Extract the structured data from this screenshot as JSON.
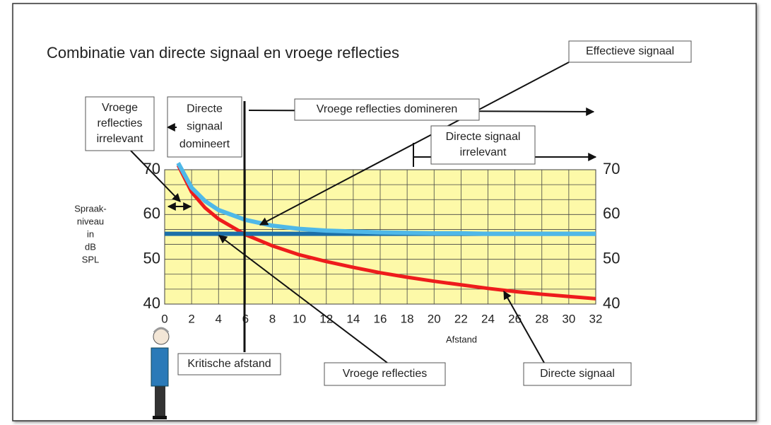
{
  "chart_data": {
    "type": "line",
    "title": "Combinatie van directe signaal en vroege reflecties",
    "ylabel": [
      "Spraak-",
      "niveau",
      "in",
      "dB",
      "SPL"
    ],
    "xlabel": "Afstand",
    "xlim": [
      0,
      32
    ],
    "xticks": [
      0,
      2,
      4,
      6,
      8,
      10,
      12,
      14,
      16,
      18,
      20,
      22,
      24,
      26,
      28,
      30,
      32
    ],
    "ylim": [
      40,
      70
    ],
    "yticks": [
      40,
      50,
      60,
      70
    ],
    "grid": true,
    "plot_background": "#fdf9a8",
    "series": [
      {
        "name": "Directe signaal",
        "color": "#ee1c1c",
        "x": [
          1,
          2,
          3,
          4,
          6,
          8,
          10,
          12,
          14,
          16,
          18,
          20,
          22,
          24,
          26,
          28,
          30,
          32
        ],
        "values": [
          71,
          65,
          61.5,
          59,
          55.5,
          53,
          51,
          49.5,
          48.2,
          47,
          46,
          45.1,
          44.3,
          43.5,
          42.8,
          42.2,
          41.7,
          41.2
        ]
      },
      {
        "name": "Vroege reflecties",
        "color": "#1b6fa8",
        "x": [
          0,
          32
        ],
        "values": [
          55.7,
          55.7
        ]
      },
      {
        "name": "Effectieve signaal",
        "color": "#4fb8e8",
        "x": [
          1,
          2,
          3,
          4,
          6,
          8,
          10,
          12,
          14,
          16,
          18,
          20,
          22,
          24,
          26,
          28,
          30,
          32
        ],
        "values": [
          71.5,
          66,
          63,
          61,
          58.8,
          57.5,
          56.8,
          56.4,
          56.2,
          56,
          55.9,
          55.8,
          55.8,
          55.7,
          55.7,
          55.7,
          55.7,
          55.7
        ]
      }
    ],
    "annotations": [
      {
        "lines": [
          "Effectieve signaal"
        ]
      },
      {
        "lines": [
          "Vroege reflecties domineren"
        ]
      },
      {
        "lines": [
          "Directe signaal",
          "irrelevant"
        ]
      },
      {
        "lines": [
          "Vroege",
          "reflecties",
          "irrelevant"
        ]
      },
      {
        "lines": [
          "Directe",
          "signaal",
          "domineert"
        ]
      },
      {
        "lines": [
          "Kritische afstand"
        ]
      },
      {
        "lines": [
          "Vroege reflecties"
        ]
      },
      {
        "lines": [
          "Directe signaal"
        ]
      }
    ]
  }
}
